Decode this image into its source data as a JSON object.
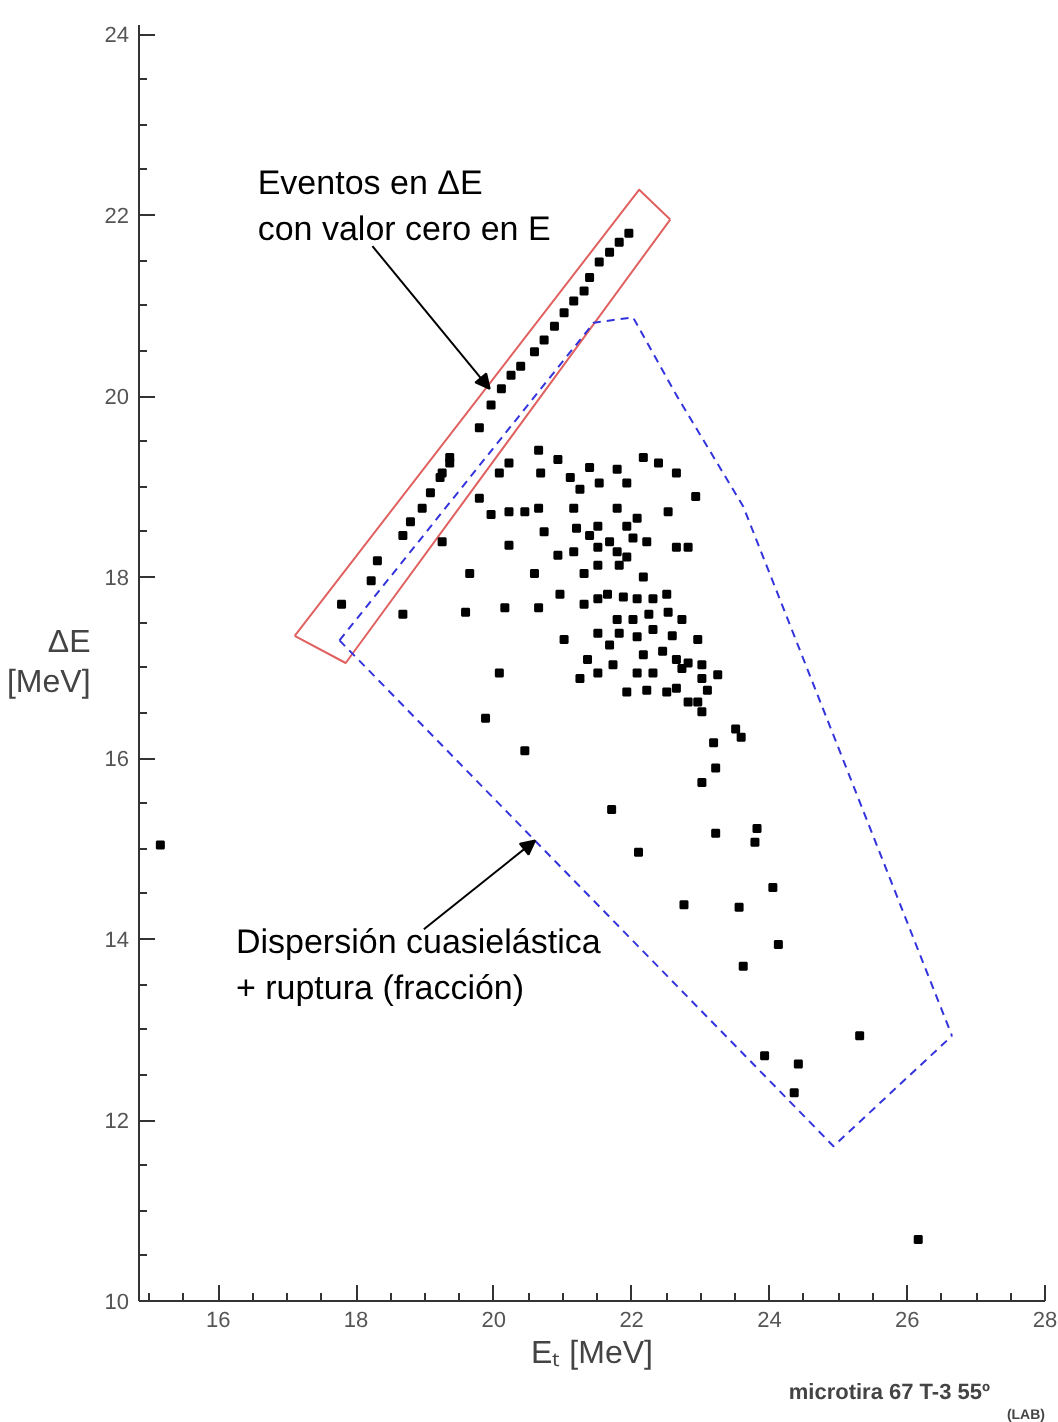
{
  "chart_data": {
    "type": "scatter",
    "xlabel": "Eₜ [MeV]",
    "ylabel": "ΔE\n[MeV]",
    "annotations": [
      {
        "text": "Eventos en ΔE\ncon valor cero en E",
        "x": 19.94,
        "y": 20.08
      },
      {
        "text": "Dispersión cuasielástica\n+ ruptura (fracción)",
        "x": 20.6,
        "y": 15.09
      },
      "microtira 67 T-3 55º$_{(LAB)}$"
    ],
    "xlim": [
      14.85,
      28.0
    ],
    "ylim": [
      10.0,
      24.1
    ],
    "xticks": [
      16,
      18,
      20,
      22,
      24,
      26,
      28
    ],
    "yticks": [
      10,
      12,
      14,
      16,
      18,
      20,
      22,
      24
    ],
    "grid": false,
    "marker": "square",
    "series": [
      {
        "type": "line",
        "color": "#e06060",
        "line_style": "solid",
        "marker": "none",
        "x": [
          17.11,
          17.85,
          22.56
        ],
        "values": [
          17.35,
          17.05,
          21.95
        ]
      },
      {
        "type": "line",
        "color": "#e06060",
        "line_style": "solid",
        "marker": "none",
        "x": [
          17.11,
          22.11,
          22.56
        ],
        "values": [
          17.35,
          22.28,
          21.95
        ]
      },
      {
        "type": "line",
        "color": "#3333dd",
        "line_style": "dashed",
        "marker": "none",
        "x": [
          17.76,
          21.45,
          22.02,
          22.65,
          23.62,
          26.65
        ],
        "values": [
          17.3,
          20.81,
          20.87,
          20.01,
          18.78,
          12.93
        ]
      },
      {
        "type": "line",
        "color": "#3333dd",
        "line_style": "dashed",
        "marker": "none",
        "x": [
          17.76,
          24.93,
          26.65
        ],
        "values": [
          17.3,
          11.71,
          12.93
        ]
      },
      {
        "color": "#000000",
        "x": [
          21.96,
          21.82,
          21.68,
          21.53,
          21.39,
          21.31,
          21.16,
          21.02,
          20.88,
          20.73,
          20.59,
          20.39,
          20.25,
          20.11,
          19.96,
          19.79,
          19.36,
          19.22,
          19.36,
          19.25,
          19.08,
          18.96,
          18.79,
          18.68,
          18.31,
          18.22,
          17.79,
          20.65,
          20.68,
          20.93,
          21.11,
          21.25,
          21.39,
          21.53,
          21.79,
          21.93,
          22.17,
          22.39,
          22.65,
          22.93,
          20.08,
          20.22,
          19.79,
          19.96,
          20.22,
          20.45,
          20.65,
          21.16,
          21.79,
          22.08,
          22.53,
          20.73,
          21.2,
          21.51,
          21.93,
          21.39,
          21.68,
          22.02,
          19.25,
          20.22,
          20.93,
          21.16,
          21.51,
          21.79,
          21.93,
          22.22,
          22.65,
          22.82,
          21.82,
          21.51,
          19.65,
          20.59,
          21.31,
          22.17,
          20.96,
          21.31,
          21.51,
          21.65,
          21.88,
          22.08,
          22.31,
          22.51,
          18.68,
          19.59,
          20.16,
          20.65,
          21.79,
          22.02,
          22.25,
          22.53,
          22.73,
          21.51,
          21.82,
          22.08,
          22.31,
          22.59,
          22.96,
          21.02,
          21.68,
          22.17,
          22.45,
          22.65,
          22.82,
          23.02,
          21.36,
          21.73,
          22.08,
          22.31,
          22.73,
          23.02,
          23.25,
          21.51,
          21.25,
          21.93,
          22.22,
          22.65,
          23.1,
          22.51,
          22.82,
          22.96,
          23.02,
          19.88,
          20.08,
          20.45,
          23.02,
          23.19,
          23.51,
          23.59,
          23.22,
          15.16,
          21.71,
          22.1,
          22.76,
          23.22,
          23.82,
          23.79,
          24.05,
          23.56,
          24.13,
          23.62,
          25.31,
          23.93,
          24.42,
          24.36,
          26.16
        ],
        "values": [
          21.8,
          21.7,
          21.59,
          21.48,
          21.31,
          21.16,
          21.05,
          20.92,
          20.77,
          20.62,
          20.49,
          20.33,
          20.23,
          20.08,
          19.9,
          19.65,
          19.26,
          19.1,
          19.32,
          19.15,
          18.93,
          18.76,
          18.61,
          18.46,
          18.18,
          17.96,
          17.7,
          19.4,
          19.15,
          19.3,
          19.1,
          18.97,
          19.21,
          19.04,
          19.19,
          19.04,
          19.32,
          19.26,
          19.15,
          18.89,
          19.15,
          19.26,
          18.87,
          18.69,
          18.72,
          18.72,
          18.76,
          18.76,
          18.76,
          18.65,
          18.72,
          18.5,
          18.54,
          18.56,
          18.56,
          18.46,
          18.39,
          18.43,
          18.39,
          18.35,
          18.24,
          18.28,
          18.33,
          18.28,
          18.22,
          18.39,
          18.33,
          18.33,
          18.13,
          18.13,
          18.04,
          18.04,
          18.04,
          18.0,
          17.81,
          17.7,
          17.76,
          17.81,
          17.78,
          17.76,
          17.76,
          17.81,
          17.59,
          17.61,
          17.66,
          17.66,
          17.53,
          17.53,
          17.59,
          17.61,
          17.53,
          17.38,
          17.38,
          17.34,
          17.42,
          17.35,
          17.31,
          17.31,
          17.25,
          17.14,
          17.18,
          17.09,
          17.05,
          17.03,
          17.09,
          17.03,
          16.94,
          16.94,
          16.99,
          16.88,
          16.92,
          16.94,
          16.88,
          16.73,
          16.75,
          16.77,
          16.75,
          16.73,
          16.62,
          16.62,
          16.51,
          16.44,
          16.94,
          16.08,
          15.73,
          16.17,
          16.32,
          16.23,
          15.89,
          15.04,
          15.43,
          14.96,
          14.38,
          15.17,
          15.22,
          15.07,
          14.57,
          14.35,
          13.94,
          13.7,
          12.93,
          12.71,
          12.62,
          12.3,
          10.68
        ]
      }
    ]
  }
}
